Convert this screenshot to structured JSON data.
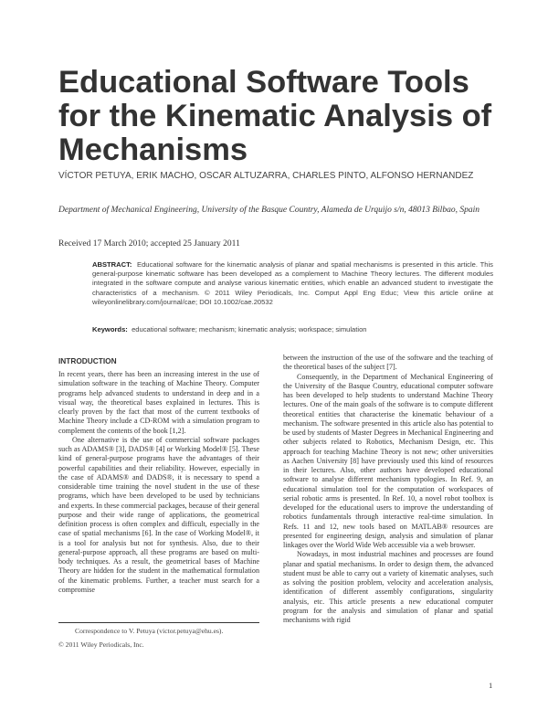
{
  "title": "Educational Software Tools for the Kinematic Analysis of Mechanisms",
  "authors": "VÍCTOR PETUYA, ERIK MACHO, OSCAR ALTUZARRA, CHARLES PINTO, ALFONSO HERNANDEZ",
  "affiliation": "Department of Mechanical Engineering, University of the Basque Country, Alameda de Urquijo s/n, 48013 Bilbao, Spain",
  "received": "Received 17 March 2010; accepted 25 January 2011",
  "abstract": {
    "label": "ABSTRACT:",
    "text": "Educational software for the kinematic analysis of planar and spatial mechanisms is presented in this article. This general-purpose kinematic software has been developed as a complement to Machine Theory lectures. The different modules integrated in the software compute and analyse various kinematic entities, which enable an advanced student to investigate the characteristics of a mechanism. © 2011 Wiley Periodicals, Inc. Comput Appl Eng Educ; View this article online at wileyonlinelibrary.com/journal/cae; DOI 10.1002/cae.20532"
  },
  "keywords": {
    "label": "Keywords:",
    "text": "educational software; mechanism; kinematic analysis; workspace; simulation"
  },
  "section_heading": "INTRODUCTION",
  "left_paragraphs": [
    "In recent years, there has been an increasing interest in the use of simulation software in the teaching of Machine Theory. Computer programs help advanced students to understand in deep and in a visual way, the theoretical bases explained in lectures. This is clearly proven by the fact that most of the current textbooks of Machine Theory include a CD-ROM with a simulation program to complement the contents of the book [1,2].",
    "One alternative is the use of commercial software packages such as ADAMS® [3], DADS® [4] or Working Model® [5]. These kind of general-purpose programs have the advantages of their powerful capabilities and their reliability. However, especially in the case of ADAMS® and DADS®, it is necessary to spend a considerable time training the novel student in the use of these programs, which have been developed to be used by technicians and experts. In these commercial packages, because of their general purpose and their wide range of applications, the geometrical definition process is often complex and difficult, especially in the case of spatial mechanisms [6]. In the case of Working Model®, it is a tool for analysis but not for synthesis. Also, due to their general-purpose approach, all these programs are based on multi-body techniques. As a result, the geometrical bases of Machine Theory are hidden for the student in the mathematical formulation of the kinematic problems. Further, a teacher must search for a compromise"
  ],
  "right_paragraphs": [
    "between the instruction of the use of the software and the teaching of the theoretical bases of the subject [7].",
    "Consequently, in the Department of Mechanical Engineering of the University of the Basque Country, educational computer software has been developed to help students to understand Machine Theory lectures. One of the main goals of the software is to compute different theoretical entities that characterise the kinematic behaviour of a mechanism. The software presented in this article also has potential to be used by students of Master Degrees in Mechanical Engineering and other subjects related to Robotics, Mechanism Design, etc. This approach for teaching Machine Theory is not new; other universities as Aachen University [8] have previously used this kind of resources in their lectures. Also, other authors have developed educational software to analyse different mechanism typologies. In Ref. 9, an educational simulation tool for the computation of workspaces of serial robotic arms is presented. In Ref. 10, a novel robot toolbox is developed for the educational users to improve the understanding of robotics fundamentals through interactive real-time simulation. In Refs. 11 and 12, new tools based on MATLAB® resources are presented for engineering design, analysis and simulation of planar linkages over the World Wide Web accessible via a web browser.",
    "Nowadays, in most industrial machines and processes are found planar and spatial mechanisms. In order to design them, the advanced student must be able to carry out a variety of kinematic analyses, such as solving the position problem, velocity and acceleration analysis, identification of different assembly configurations, singularity analysis, etc. This article presents a new educational computer program for the analysis and simulation of planar and spatial mechanisms with rigid"
  ],
  "footnote": {
    "correspondence": "Correspondence to V. Petuya (victor.petuya@ehu.es).",
    "copyright": "© 2011 Wiley Periodicals, Inc."
  },
  "page_number": "1"
}
